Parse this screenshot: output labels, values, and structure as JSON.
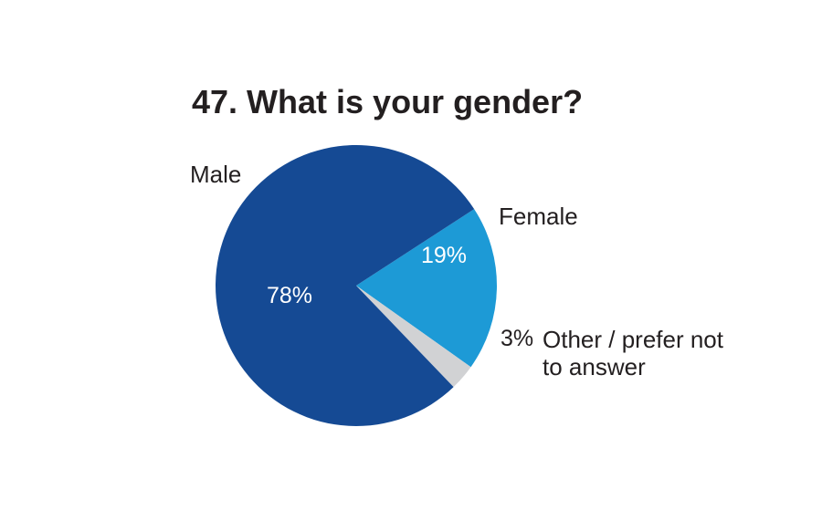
{
  "chart_data": {
    "type": "pie",
    "title": "47. What is your gender?",
    "slices": [
      {
        "label": "Male",
        "value": 78,
        "display": "78%",
        "color": "#154a94"
      },
      {
        "label": "Female",
        "value": 19,
        "display": "19%",
        "color": "#1d9ad6"
      },
      {
        "label_lines": [
          "Other / prefer not",
          "to answer"
        ],
        "value": 3,
        "display": "3%",
        "color": "#d1d2d4"
      }
    ]
  }
}
